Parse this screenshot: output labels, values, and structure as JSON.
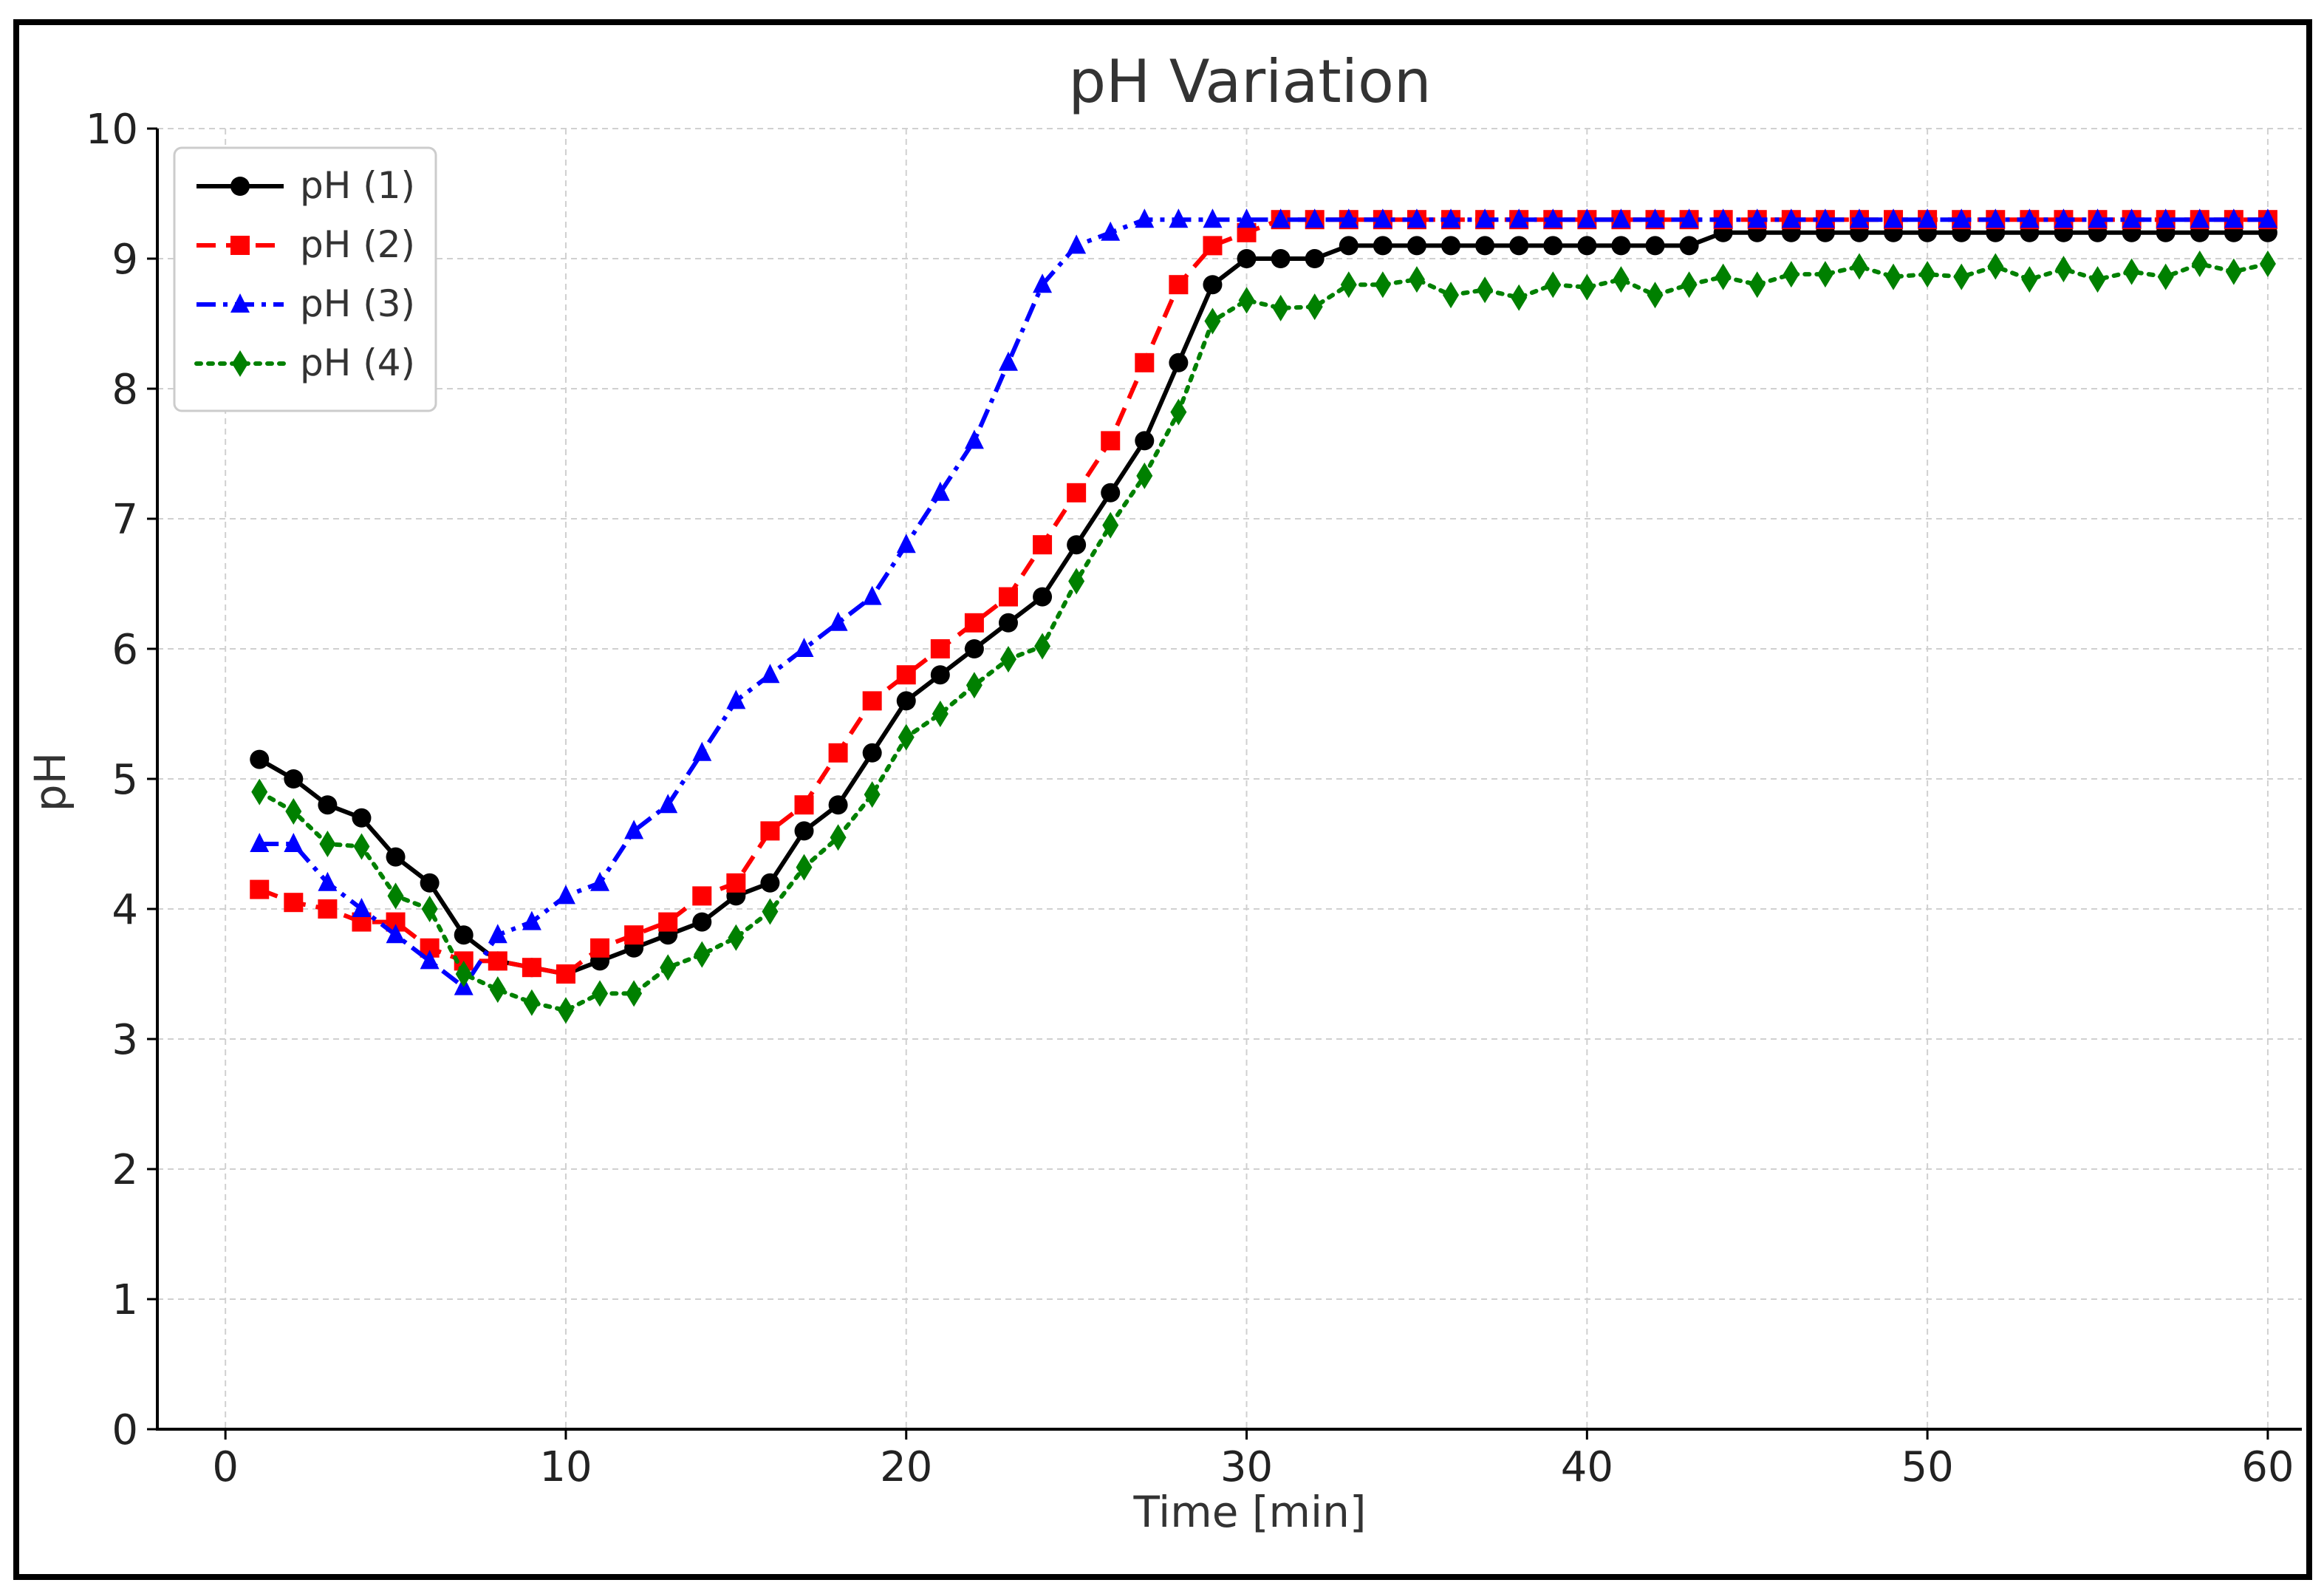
{
  "chart_data": {
    "type": "line",
    "title": "pH Variation",
    "xlabel": "Time [min]",
    "ylabel": "pH",
    "xlim": [
      -2,
      61
    ],
    "ylim": [
      0,
      10
    ],
    "xticks": [
      0,
      10,
      20,
      30,
      40,
      50,
      60
    ],
    "yticks": [
      0,
      1,
      2,
      3,
      4,
      5,
      6,
      7,
      8,
      9,
      10
    ],
    "grid": true,
    "legend_position": "top-left",
    "x": [
      1,
      2,
      3,
      4,
      5,
      6,
      7,
      8,
      9,
      10,
      11,
      12,
      13,
      14,
      15,
      16,
      17,
      18,
      19,
      20,
      21,
      22,
      23,
      24,
      25,
      26,
      27,
      28,
      29,
      30,
      31,
      32,
      33,
      34,
      35,
      36,
      37,
      38,
      39,
      40,
      41,
      42,
      43,
      44,
      45,
      46,
      47,
      48,
      49,
      50,
      51,
      52,
      53,
      54,
      55,
      56,
      57,
      58,
      59,
      60
    ],
    "series": [
      {
        "name": "pH (1)",
        "color": "#000000",
        "marker": "circle",
        "linestyle": "solid",
        "values": [
          5.15,
          5.0,
          4.8,
          4.7,
          4.4,
          4.2,
          3.8,
          3.6,
          3.55,
          3.5,
          3.6,
          3.7,
          3.8,
          3.9,
          4.1,
          4.2,
          4.6,
          4.8,
          5.2,
          5.6,
          5.8,
          6.0,
          6.2,
          6.4,
          6.8,
          7.2,
          7.6,
          8.2,
          8.8,
          9.0,
          9.0,
          9.0,
          9.1,
          9.1,
          9.1,
          9.1,
          9.1,
          9.1,
          9.1,
          9.1,
          9.1,
          9.1,
          9.1,
          9.2,
          9.2,
          9.2,
          9.2,
          9.2,
          9.2,
          9.2,
          9.2,
          9.2,
          9.2,
          9.2,
          9.2,
          9.2,
          9.2,
          9.2,
          9.2,
          9.2
        ]
      },
      {
        "name": "pH (2)",
        "color": "#ff0000",
        "marker": "square",
        "linestyle": "dashed",
        "values": [
          4.15,
          4.05,
          4.0,
          3.9,
          3.9,
          3.7,
          3.6,
          3.6,
          3.55,
          3.5,
          3.7,
          3.8,
          3.9,
          4.1,
          4.2,
          4.6,
          4.8,
          5.2,
          5.6,
          5.8,
          6.0,
          6.2,
          6.4,
          6.8,
          7.2,
          7.6,
          8.2,
          8.8,
          9.1,
          9.2,
          9.3,
          9.3,
          9.3,
          9.3,
          9.3,
          9.3,
          9.3,
          9.3,
          9.3,
          9.3,
          9.3,
          9.3,
          9.3,
          9.3,
          9.3,
          9.3,
          9.3,
          9.3,
          9.3,
          9.3,
          9.3,
          9.3,
          9.3,
          9.3,
          9.3,
          9.3,
          9.3,
          9.3,
          9.3,
          9.3
        ]
      },
      {
        "name": "pH (3)",
        "color": "#0000ff",
        "marker": "triangle",
        "linestyle": "dashdot",
        "values": [
          4.5,
          4.5,
          4.2,
          4.0,
          3.8,
          3.6,
          3.4,
          3.8,
          3.9,
          4.1,
          4.2,
          4.6,
          4.8,
          5.2,
          5.6,
          5.8,
          6.0,
          6.2,
          6.4,
          6.8,
          7.2,
          7.6,
          8.2,
          8.8,
          9.1,
          9.2,
          9.3,
          9.3,
          9.3,
          9.3,
          9.3,
          9.3,
          9.3,
          9.3,
          9.3,
          9.3,
          9.3,
          9.3,
          9.3,
          9.3,
          9.3,
          9.3,
          9.3,
          9.3,
          9.3,
          9.3,
          9.3,
          9.3,
          9.3,
          9.3,
          9.3,
          9.3,
          9.3,
          9.3,
          9.3,
          9.3,
          9.3,
          9.3,
          9.3,
          9.3
        ]
      },
      {
        "name": "pH (4)",
        "color": "#008000",
        "marker": "diamond",
        "linestyle": "dotted",
        "values": [
          4.9,
          4.75,
          4.5,
          4.48,
          4.1,
          4.0,
          3.5,
          3.38,
          3.28,
          3.22,
          3.35,
          3.35,
          3.55,
          3.65,
          3.78,
          3.98,
          4.32,
          4.55,
          4.88,
          5.32,
          5.5,
          5.72,
          5.92,
          6.02,
          6.52,
          6.95,
          7.33,
          7.82,
          8.52,
          8.68,
          8.62,
          8.63,
          8.8,
          8.8,
          8.84,
          8.72,
          8.76,
          8.7,
          8.8,
          8.78,
          8.84,
          8.72,
          8.8,
          8.86,
          8.8,
          8.88,
          8.88,
          8.94,
          8.86,
          8.88,
          8.86,
          8.94,
          8.84,
          8.92,
          8.84,
          8.9,
          8.86,
          8.96,
          8.9,
          8.96
        ]
      }
    ]
  }
}
